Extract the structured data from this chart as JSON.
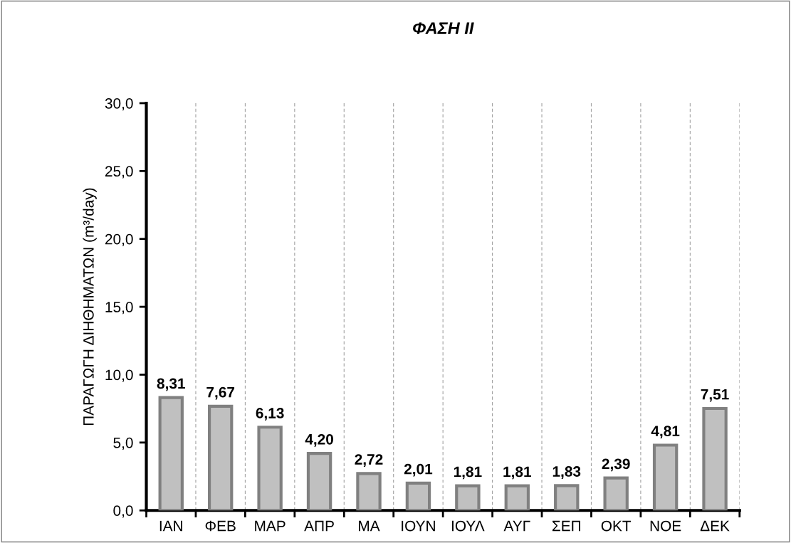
{
  "chart_data": {
    "type": "bar",
    "title": "ΦΑΣΗ II",
    "ylabel": "ΠΑΡΑΓΩΓΗ ΔΙΗΘΗΜΑΤΩΝ (m³/day)",
    "categories": [
      "ΙΑΝ",
      "ΦΕΒ",
      "ΜΑΡ",
      "ΑΠΡ",
      "ΜΑ",
      "ΙΟΥΝ",
      "ΙΟΥΛ",
      "ΑΥΓ",
      "ΣΕΠ",
      "ΟΚΤ",
      "ΝΟΕ",
      "ΔΕΚ"
    ],
    "values": [
      8.31,
      7.67,
      6.13,
      4.2,
      2.72,
      2.01,
      1.81,
      1.81,
      1.83,
      2.39,
      4.81,
      7.51
    ],
    "value_labels": [
      "8,31",
      "7,67",
      "6,13",
      "4,20",
      "2,72",
      "2,01",
      "1,81",
      "1,81",
      "1,83",
      "2,39",
      "4,81",
      "7,51"
    ],
    "color": "#c0c0c0",
    "ylim": [
      0,
      30
    ],
    "yticks": [
      {
        "value": 0,
        "label": "0,0"
      },
      {
        "value": 5,
        "label": "5,0"
      },
      {
        "value": 10,
        "label": "10,0"
      },
      {
        "value": 15,
        "label": "15,0"
      },
      {
        "value": 20,
        "label": "20,0"
      },
      {
        "value": 25,
        "label": "25,0"
      },
      {
        "value": 30,
        "label": "30,0"
      }
    ],
    "grid": "x"
  }
}
